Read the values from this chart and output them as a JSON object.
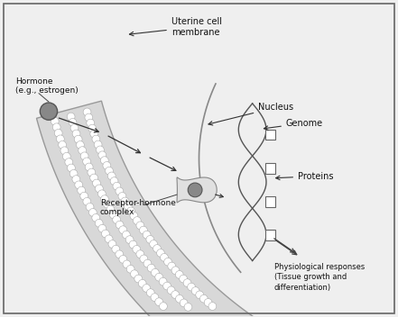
{
  "bg_color": "#efefef",
  "text_color": "#111111",
  "membrane_fill": "#d8d8d8",
  "membrane_edge": "#999999",
  "dot_color": "#ffffff",
  "dot_edge": "#aaaaaa",
  "dark_gray": "#777777",
  "hormone_fill": "#888888",
  "nucleus_arc_color": "#888888",
  "receptor_fill": "#cccccc",
  "dna_color": "#555555",
  "arrow_color": "#333333",
  "labels": {
    "uterine": "Uterine cell\nmembrane",
    "hormone": "Hormone\n(e.g., estrogen)",
    "receptor": "Receptor-hormone\ncomplex",
    "nucleus": "Nucleus",
    "genome": "Genome",
    "proteins": "Proteins",
    "physio": "Physiological responses\n(Tissue growth and\ndifferentiation)"
  },
  "figsize": [
    4.41,
    3.52
  ],
  "dpi": 100
}
